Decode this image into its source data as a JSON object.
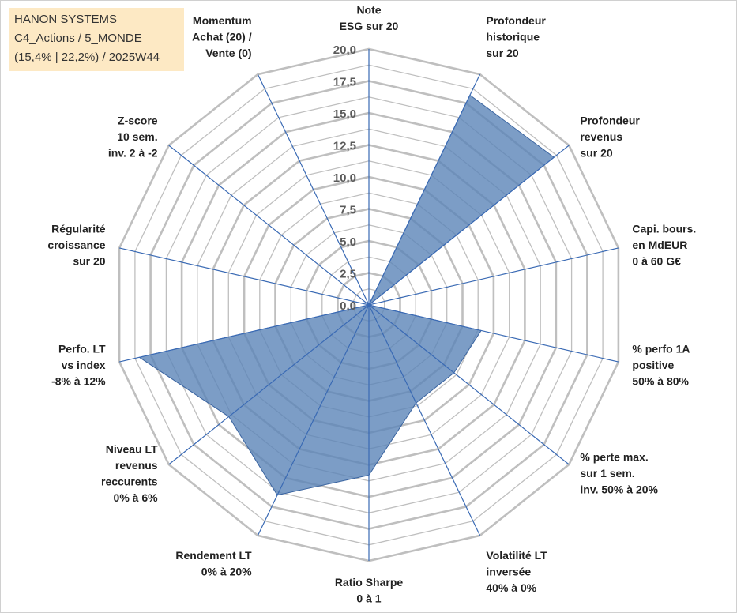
{
  "info": {
    "company": "HANON SYSTEMS",
    "portfolio": "C4_Actions / 5_MONDE",
    "period": "(15,4% | 22,2%) / 2025W44"
  },
  "chart_data": {
    "type": "radar",
    "title": "",
    "r_range": [
      0,
      20
    ],
    "tick_values": [
      0,
      2.5,
      5,
      7.5,
      10,
      12.5,
      15,
      17.5,
      20
    ],
    "tick_labels": [
      "0,0",
      "2,5",
      "5,0",
      "7,5",
      "10,0",
      "12,5",
      "15,0",
      "17,5",
      "20,0"
    ],
    "axes": [
      {
        "lines": [
          "Note",
          "ESG sur 20"
        ]
      },
      {
        "lines": [
          "Profondeur",
          "historique",
          "sur 20"
        ]
      },
      {
        "lines": [
          "Profondeur",
          "revenus",
          "sur 20"
        ]
      },
      {
        "lines": [
          "Capi. bours.",
          "en MdEUR",
          "0 à 60 G€"
        ]
      },
      {
        "lines": [
          "% perfo 1A",
          "positive",
          "50% à 80%"
        ]
      },
      {
        "lines": [
          "% perte max.",
          "sur 1 sem.",
          "inv. 50% à 20%"
        ]
      },
      {
        "lines": [
          "Volatilité LT",
          "inversée",
          "40% à 0%"
        ]
      },
      {
        "lines": [
          "Ratio Sharpe",
          "0 à 1"
        ]
      },
      {
        "lines": [
          "Rendement LT",
          "0% à 20%"
        ]
      },
      {
        "lines": [
          "Niveau LT",
          "revenus",
          "reccurents",
          "0% à 6%"
        ]
      },
      {
        "lines": [
          "Perfo. LT",
          "vs index",
          "-8% à 12%"
        ]
      },
      {
        "lines": [
          "Régularité",
          "croissance",
          "sur 20"
        ]
      },
      {
        "lines": [
          "Z-score",
          "10 sem.",
          "inv. 2 à -2"
        ]
      },
      {
        "lines": [
          "Momentum",
          "Achat (20) /",
          "Vente (0)"
        ]
      }
    ],
    "series": [
      {
        "name": "HANON SYSTEMS",
        "color": "#5b84b8",
        "values": [
          0,
          18.2,
          18.5,
          0,
          9.0,
          8.5,
          8.5,
          13.3,
          16.5,
          14.0,
          18.4,
          0,
          0,
          0
        ]
      }
    ],
    "grid": true,
    "grid_color": "#bfbfbf",
    "spoke_color": "#3a6ab4"
  }
}
